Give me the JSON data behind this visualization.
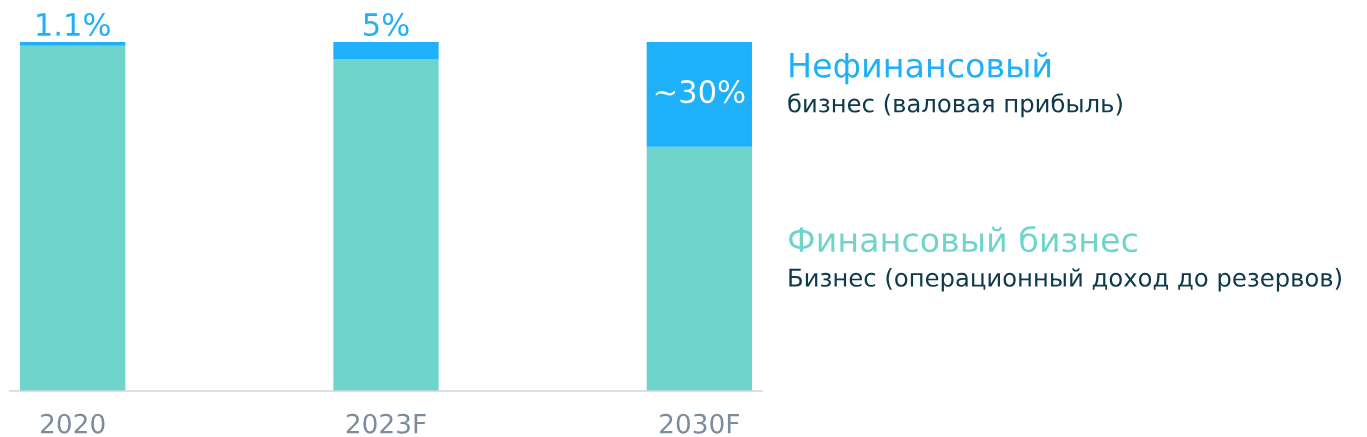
{
  "chart_data": {
    "type": "bar",
    "stacked": true,
    "categories": [
      "2020",
      "2023F",
      "2030F"
    ],
    "series": [
      {
        "name": "Финансовый бизнес",
        "color": "#6fd5cc",
        "values": [
          98.9,
          95,
          70
        ]
      },
      {
        "name": "Нефинансовый",
        "color": "#1eb0f8",
        "values": [
          1.1,
          5,
          30
        ],
        "value_labels": [
          "1.1%",
          "5%",
          "~30%"
        ]
      }
    ],
    "ylim": [
      0,
      100
    ],
    "tick_labels": "x",
    "grid": false,
    "legend": "right",
    "annotations": [
      "бизнес (валовая прибыль)",
      "Бизнес (операционный доход до резервов)"
    ]
  }
}
